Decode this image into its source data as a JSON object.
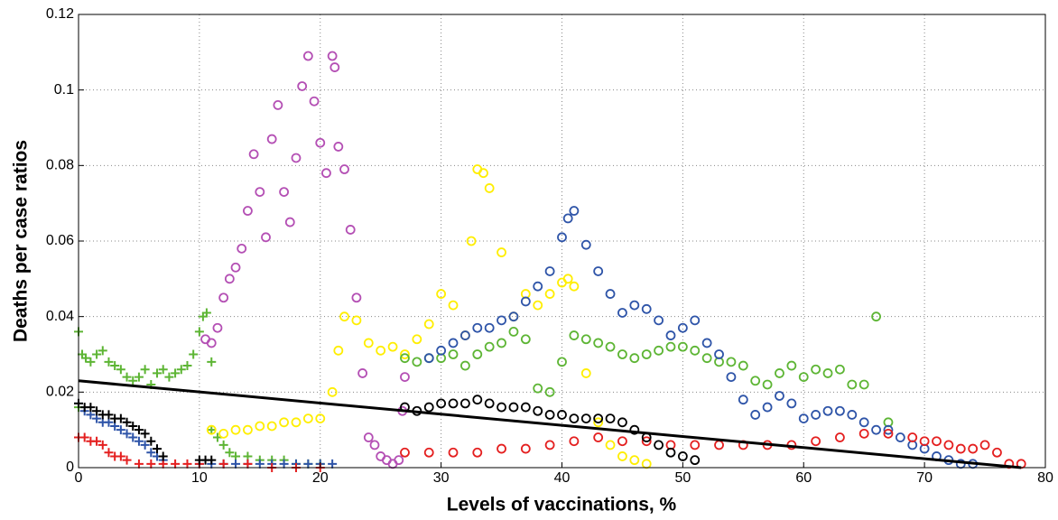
{
  "chart_data": {
    "type": "scatter",
    "x_label": "Levels of vaccinations, %",
    "y_label": "Deaths per case ratios",
    "xlim": [
      0,
      80
    ],
    "ylim": [
      0,
      0.12
    ],
    "xticks": [
      0,
      10,
      20,
      30,
      40,
      50,
      60,
      70,
      80
    ],
    "yticks": [
      0,
      0.02,
      0.04,
      0.06,
      0.08,
      0.1,
      0.12
    ],
    "grid": true,
    "series": [
      {
        "marker": "plus",
        "color": "#5db534",
        "x": [
          0,
          0,
          0.3,
          0.6,
          1,
          1.5,
          2,
          2.5,
          3,
          3.5,
          4,
          4.5,
          5,
          5.5,
          6,
          6.5,
          7,
          7.5,
          8,
          8.5,
          9,
          9.5,
          10,
          10.3,
          10.6,
          11
        ],
        "values": [
          0.016,
          0.036,
          0.03,
          0.029,
          0.028,
          0.03,
          0.031,
          0.028,
          0.027,
          0.026,
          0.024,
          0.023,
          0.024,
          0.026,
          0.022,
          0.025,
          0.026,
          0.024,
          0.025,
          0.026,
          0.027,
          0.03,
          0.036,
          0.04,
          0.041,
          0.028
        ]
      },
      {
        "marker": "plus",
        "color": "#5db534",
        "x": [
          11,
          11.5,
          12,
          12.5,
          13,
          14,
          15,
          16,
          17,
          18,
          19,
          20
        ],
        "values": [
          0.01,
          0.008,
          0.006,
          0.004,
          0.003,
          0.003,
          0.002,
          0.002,
          0.002,
          0.001,
          0.001,
          0.001
        ]
      },
      {
        "marker": "plus",
        "color": "#2e54a8",
        "x": [
          0,
          0.5,
          1,
          1.5,
          2,
          2.5,
          3,
          3.5,
          4,
          4.5,
          5,
          5.5,
          6,
          6.5,
          7,
          10,
          11,
          12,
          13,
          14,
          15,
          16,
          17,
          18,
          19,
          20,
          21
        ],
        "values": [
          0.017,
          0.015,
          0.014,
          0.013,
          0.012,
          0.012,
          0.011,
          0.01,
          0.009,
          0.008,
          0.007,
          0.006,
          0.004,
          0.003,
          0.002,
          0.001,
          0.001,
          0.001,
          0.001,
          0.001,
          0.001,
          0.001,
          0.001,
          0.001,
          0.001,
          0.001,
          0.001
        ]
      },
      {
        "marker": "plus",
        "color": "#e41f1f",
        "x": [
          0,
          0.5,
          1,
          1.5,
          2,
          2.5,
          3,
          3.5,
          4,
          5,
          6,
          7,
          8,
          9,
          10,
          12,
          14,
          16,
          18,
          20
        ],
        "values": [
          0.008,
          0.008,
          0.007,
          0.007,
          0.006,
          0.004,
          0.003,
          0.003,
          0.002,
          0.001,
          0.001,
          0.001,
          0.001,
          0.001,
          0.001,
          0.001,
          0.001,
          0,
          0,
          0
        ]
      },
      {
        "marker": "plus",
        "color": "#000000",
        "x": [
          0,
          0.5,
          1,
          1.5,
          2,
          2.5,
          3,
          3.5,
          4,
          4.5,
          5,
          5.5,
          6,
          6.5,
          7,
          10,
          10.5,
          11
        ],
        "values": [
          0.017,
          0.016,
          0.016,
          0.015,
          0.014,
          0.014,
          0.013,
          0.013,
          0.012,
          0.011,
          0.01,
          0.009,
          0.007,
          0.005,
          0.003,
          0.002,
          0.002,
          0.002
        ]
      },
      {
        "marker": "circle",
        "color": "#b44fb4",
        "x": [
          10.5,
          11,
          11.5,
          12,
          12.5,
          13,
          13.5,
          14,
          14.5,
          15,
          15.5,
          16,
          16.5,
          17,
          17.5,
          18,
          18.5,
          19,
          19.5,
          20,
          20.5,
          21,
          21.2,
          21.5,
          22,
          22.5,
          23,
          23.5,
          24,
          24.5,
          25,
          25.5,
          26,
          26.5,
          26.8,
          27
        ],
        "values": [
          0.034,
          0.033,
          0.037,
          0.045,
          0.05,
          0.053,
          0.058,
          0.068,
          0.083,
          0.073,
          0.061,
          0.087,
          0.096,
          0.073,
          0.065,
          0.082,
          0.101,
          0.109,
          0.097,
          0.086,
          0.078,
          0.109,
          0.106,
          0.085,
          0.079,
          0.063,
          0.045,
          0.025,
          0.008,
          0.006,
          0.003,
          0.002,
          0.001,
          0.002,
          0.015,
          0.024
        ]
      },
      {
        "marker": "circle",
        "color": "#ffee00",
        "x": [
          11,
          12,
          13,
          14,
          15,
          16,
          17,
          18,
          19,
          20
        ],
        "values": [
          0.01,
          0.009,
          0.01,
          0.01,
          0.011,
          0.011,
          0.012,
          0.012,
          0.013,
          0.013
        ]
      },
      {
        "marker": "circle",
        "color": "#ffee00",
        "x": [
          21,
          21.5,
          22,
          23,
          24,
          25,
          26,
          27,
          28,
          29,
          30,
          31,
          32,
          32.5,
          33,
          33.5,
          34,
          35,
          36,
          37,
          38,
          39,
          40,
          40.5,
          41,
          42,
          43,
          44,
          45,
          46,
          47
        ],
        "values": [
          0.02,
          0.031,
          0.04,
          0.039,
          0.033,
          0.031,
          0.032,
          0.03,
          0.034,
          0.038,
          0.046,
          0.043,
          0.035,
          0.06,
          0.079,
          0.078,
          0.074,
          0.057,
          0.04,
          0.046,
          0.043,
          0.046,
          0.049,
          0.05,
          0.048,
          0.025,
          0.012,
          0.006,
          0.003,
          0.002,
          0.001
        ]
      },
      {
        "marker": "circle",
        "color": "#5db534",
        "x": [
          27,
          28,
          29,
          30,
          31,
          32,
          33,
          34,
          35,
          36,
          37,
          38,
          39,
          40,
          41,
          42,
          43,
          44,
          45,
          46,
          47,
          48,
          49,
          50,
          51,
          52,
          53,
          54,
          55,
          56,
          57,
          58,
          59,
          60,
          61,
          62,
          63,
          64,
          65,
          66,
          67
        ],
        "values": [
          0.029,
          0.028,
          0.029,
          0.029,
          0.03,
          0.027,
          0.03,
          0.032,
          0.033,
          0.036,
          0.034,
          0.021,
          0.02,
          0.028,
          0.035,
          0.034,
          0.033,
          0.032,
          0.03,
          0.029,
          0.03,
          0.031,
          0.032,
          0.032,
          0.031,
          0.029,
          0.028,
          0.028,
          0.027,
          0.023,
          0.022,
          0.025,
          0.027,
          0.024,
          0.026,
          0.025,
          0.026,
          0.022,
          0.022,
          0.04,
          0.012
        ]
      },
      {
        "marker": "circle",
        "color": "#2e54a8",
        "x": [
          29,
          30,
          31,
          32,
          33,
          34,
          35,
          36,
          37,
          38,
          39,
          40,
          40.5,
          41,
          42,
          43,
          44,
          45,
          46,
          47,
          48,
          49,
          50,
          51,
          52,
          53,
          54,
          55,
          56,
          57,
          58,
          59,
          60,
          61,
          62,
          63,
          64,
          65,
          66,
          67,
          68,
          69,
          70,
          71,
          72,
          73,
          74
        ],
        "values": [
          0.029,
          0.031,
          0.033,
          0.035,
          0.037,
          0.037,
          0.039,
          0.04,
          0.044,
          0.048,
          0.052,
          0.061,
          0.066,
          0.068,
          0.059,
          0.052,
          0.046,
          0.041,
          0.043,
          0.042,
          0.039,
          0.035,
          0.037,
          0.039,
          0.033,
          0.03,
          0.024,
          0.018,
          0.014,
          0.016,
          0.019,
          0.017,
          0.013,
          0.014,
          0.015,
          0.015,
          0.014,
          0.012,
          0.01,
          0.01,
          0.008,
          0.006,
          0.005,
          0.003,
          0.002,
          0.001,
          0.001
        ]
      },
      {
        "marker": "circle",
        "color": "#e41f1f",
        "x": [
          27,
          29,
          31,
          33,
          35,
          37,
          39,
          41,
          43,
          45,
          47,
          49,
          51,
          53,
          55,
          57,
          59,
          61,
          63,
          65,
          67,
          69,
          70,
          71,
          72,
          73,
          74,
          75,
          76,
          77,
          78
        ],
        "values": [
          0.004,
          0.004,
          0.004,
          0.004,
          0.005,
          0.005,
          0.006,
          0.007,
          0.008,
          0.007,
          0.007,
          0.006,
          0.006,
          0.006,
          0.006,
          0.006,
          0.006,
          0.007,
          0.008,
          0.009,
          0.009,
          0.008,
          0.007,
          0.007,
          0.006,
          0.005,
          0.005,
          0.006,
          0.004,
          0.001,
          0.001
        ]
      },
      {
        "marker": "circle",
        "color": "#000000",
        "x": [
          27,
          28,
          29,
          30,
          31,
          32,
          33,
          34,
          35,
          36,
          37,
          38,
          39,
          40,
          41,
          42,
          43,
          44,
          45,
          46,
          47,
          48,
          49,
          50,
          51
        ],
        "values": [
          0.016,
          0.015,
          0.016,
          0.017,
          0.017,
          0.017,
          0.018,
          0.017,
          0.016,
          0.016,
          0.016,
          0.015,
          0.014,
          0.014,
          0.013,
          0.013,
          0.013,
          0.013,
          0.012,
          0.01,
          0.008,
          0.006,
          0.004,
          0.003,
          0.002
        ]
      },
      {
        "marker": "line",
        "color": "#000000",
        "x": [
          0,
          78
        ],
        "values": [
          0.023,
          0
        ]
      }
    ]
  }
}
